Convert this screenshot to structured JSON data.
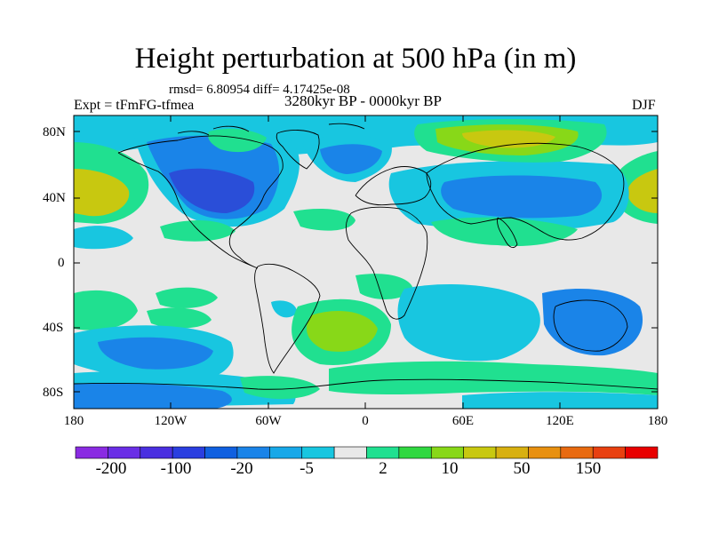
{
  "title": "Height perturbation at 500 hPa (in m)",
  "stats": "rmsd= 6.80954 diff= 4.17425e-08",
  "experiment": "Expt = tFmFG-tfmea",
  "period": "3280kyr BP - 0000kyr BP",
  "season": "DJF",
  "lat_ticks": [
    "80N",
    "40N",
    "0",
    "40S",
    "80S"
  ],
  "lon_ticks": [
    "180",
    "120W",
    "60W",
    "0",
    "60E",
    "120E",
    "180"
  ],
  "colorbar": {
    "labels": [
      "-200",
      "-100",
      "-20",
      "-5",
      "2",
      "10",
      "50",
      "150"
    ],
    "colors": [
      "#8a2be2",
      "#6a2ee6",
      "#4a2fe0",
      "#2a3ee0",
      "#1060e0",
      "#1a84e8",
      "#18a8e8",
      "#18c6e0",
      "#e8e8e8",
      "#20e090",
      "#30d840",
      "#88d818",
      "#c8c810",
      "#d8b010",
      "#e89010",
      "#e86a10",
      "#e84010",
      "#e80000"
    ]
  },
  "map_colors": {
    "neutral": "#e8e8e8",
    "light_blue": "#18c6e0",
    "blue": "#1a84e8",
    "dark_blue": "#1060e0",
    "deep_blue": "#2a4ed8",
    "green": "#20e090",
    "lime": "#88d818",
    "yellow": "#c8c810"
  }
}
